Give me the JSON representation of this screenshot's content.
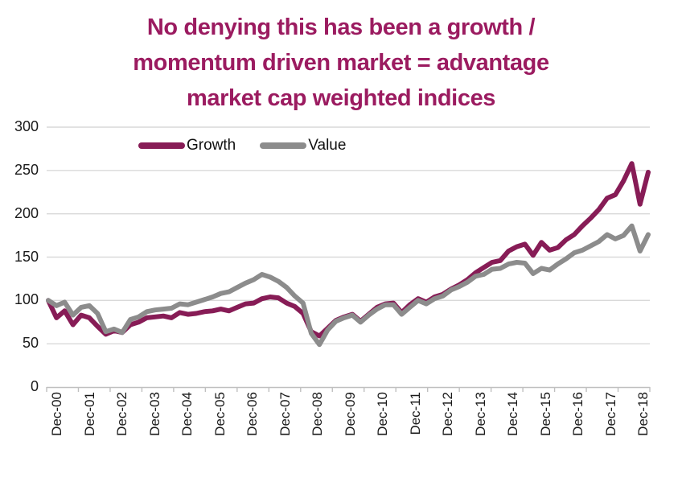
{
  "title": {
    "line1": "No denying this has been a growth /",
    "line2": "momentum driven market = advantage",
    "line3": "market cap weighted indices"
  },
  "colors": {
    "title": "#9B1B60",
    "growth_line": "#871C56",
    "value_line": "#8C8C8C",
    "gridline": "#D9D9D9",
    "axis": "#C0C0C0",
    "tick_text": "#1A1A1A"
  },
  "chart_data": {
    "type": "line",
    "title": "No denying this has been a growth / momentum driven market = advantage market cap weighted indices",
    "xlabel": "",
    "ylabel": "",
    "ylim": [
      0,
      300
    ],
    "yticks": [
      0,
      50,
      100,
      150,
      200,
      250,
      300
    ],
    "grid": "horizontal",
    "legend_position": "top-inside",
    "categories": [
      "Dec-00",
      "Dec-01",
      "Dec-02",
      "Dec-03",
      "Dec-04",
      "Dec-05",
      "Dec-06",
      "Dec-07",
      "Dec-08",
      "Dec-09",
      "Dec-10",
      "Dec-11",
      "Dec-12",
      "Dec-13",
      "Dec-14",
      "Dec-15",
      "Dec-16",
      "Dec-17",
      "Dec-18"
    ],
    "x_frequency": "quarterly from Dec-00 (indexed to 100) through Mar-19",
    "series": [
      {
        "name": "Growth",
        "color": "#871C56",
        "values": [
          100,
          80,
          88,
          72,
          83,
          80,
          70,
          61,
          65,
          63,
          72,
          75,
          80,
          81,
          82,
          80,
          86,
          84,
          85,
          87,
          88,
          90,
          88,
          92,
          96,
          97,
          102,
          104,
          103,
          97,
          93,
          85,
          64,
          59,
          68,
          77,
          81,
          84,
          76,
          84,
          92,
          96,
          97,
          86,
          95,
          102,
          98,
          104,
          107,
          113,
          118,
          124,
          132,
          138,
          144,
          146,
          157,
          162,
          165,
          152,
          167,
          158,
          161,
          170,
          176,
          186,
          195,
          205,
          218,
          222,
          238,
          258,
          211,
          248
        ]
      },
      {
        "name": "Value",
        "color": "#8C8C8C",
        "values": [
          100,
          94,
          98,
          83,
          92,
          94,
          85,
          64,
          67,
          63,
          78,
          81,
          87,
          89,
          90,
          91,
          96,
          95,
          98,
          101,
          104,
          108,
          110,
          115,
          120,
          124,
          130,
          127,
          122,
          115,
          105,
          97,
          62,
          49,
          66,
          76,
          80,
          83,
          75,
          83,
          90,
          95,
          95,
          84,
          92,
          100,
          96,
          102,
          105,
          112,
          116,
          121,
          128,
          130,
          136,
          137,
          142,
          144,
          143,
          131,
          137,
          135,
          142,
          148,
          155,
          158,
          163,
          168,
          176,
          171,
          175,
          186,
          157,
          176
        ]
      }
    ]
  }
}
